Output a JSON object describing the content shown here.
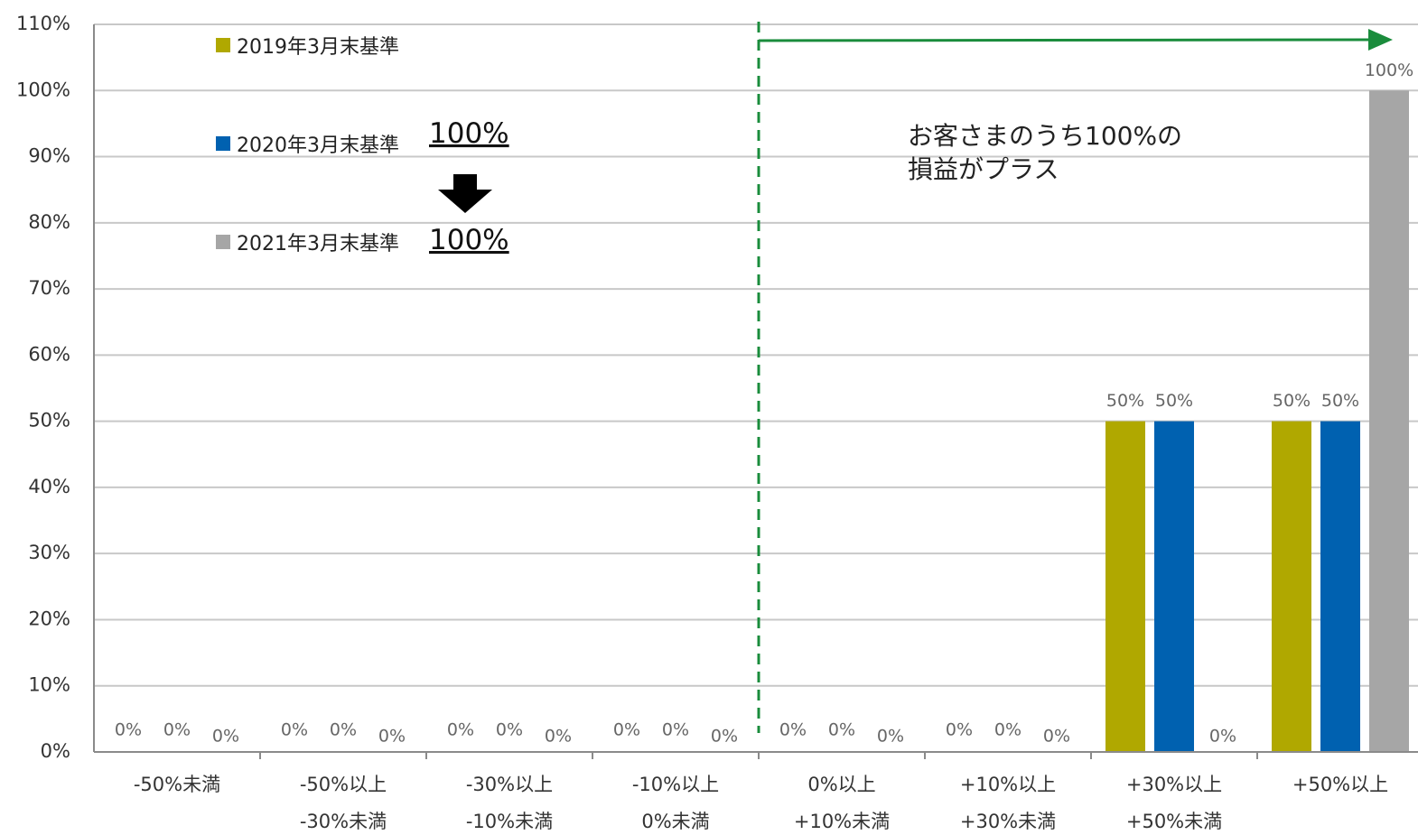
{
  "chart_data": {
    "type": "bar",
    "categories": [
      {
        "line1": "-50%未満",
        "line2": ""
      },
      {
        "line1": "-50%以上",
        "line2": "-30%未満"
      },
      {
        "line1": "-30%以上",
        "line2": "-10%未満"
      },
      {
        "line1": "-10%以上",
        "line2": "0%未満"
      },
      {
        "line1": "0%以上",
        "line2": "+10%未満"
      },
      {
        "line1": "+10%以上",
        "line2": "+30%未満"
      },
      {
        "line1": "+30%以上",
        "line2": "+50%未満"
      },
      {
        "line1": "+50%以上",
        "line2": ""
      }
    ],
    "series": [
      {
        "name": "2019年3月末基準",
        "color": "#b0a800",
        "values": [
          0,
          0,
          0,
          0,
          0,
          0,
          50,
          50
        ],
        "labels": [
          "0%",
          "0%",
          "0%",
          "0%",
          "0%",
          "0%",
          "50%",
          "50%"
        ]
      },
      {
        "name": "2020年3月末基準",
        "color": "#0061b0",
        "values": [
          0,
          0,
          0,
          0,
          0,
          0,
          50,
          50
        ],
        "labels": [
          "0%",
          "0%",
          "0%",
          "0%",
          "0%",
          "0%",
          "50%",
          "50%"
        ]
      },
      {
        "name": "2021年3月末基準",
        "color": "#a6a6a6",
        "values": [
          0,
          0,
          0,
          0,
          0,
          0,
          0,
          100
        ],
        "labels": [
          "0%",
          "0%",
          "0%",
          "0%",
          "0%",
          "0%",
          "0%",
          "100%"
        ]
      }
    ],
    "yticks": [
      "0%",
      "10%",
      "20%",
      "30%",
      "40%",
      "50%",
      "60%",
      "70%",
      "80%",
      "90%",
      "100%",
      "110%"
    ],
    "ylim": [
      0,
      110
    ],
    "grid": true,
    "legend_placement": "top-left",
    "legend_values": [
      "",
      "100%",
      "100%"
    ],
    "annotation": {
      "line1": "お客さまのうち100%の",
      "line2": "損益がプラス"
    },
    "divider_color": "#1a8c3c",
    "arrow_color": "#1a8c3c"
  }
}
